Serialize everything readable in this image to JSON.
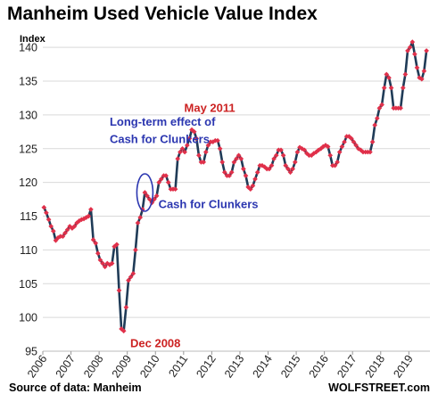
{
  "title": "Manheim Used Vehicle Value Index",
  "source": "Source of data: Manheim",
  "brand": "WOLFSTREET.com",
  "colors": {
    "line": "#1f3b57",
    "marker": "#e0304a",
    "red_text": "#cc2222",
    "blue_text": "#2b36b0",
    "grid": "#d9d9d9"
  },
  "chart_data": {
    "type": "line",
    "ylabel": "Index",
    "ylim": [
      95,
      142
    ],
    "yticks": [
      95,
      100,
      105,
      110,
      115,
      120,
      125,
      130,
      135,
      140
    ],
    "xlim": [
      2006,
      2019.75
    ],
    "xticks": [
      "2006",
      "2007",
      "2008",
      "2009",
      "2010",
      "2011",
      "2012",
      "2013",
      "2014",
      "2015",
      "2016",
      "2017",
      "2018",
      "2019"
    ],
    "grid": "horizontal",
    "legend": "none",
    "series": [
      {
        "x": [
          "2006-01",
          "2006-02",
          "2006-03",
          "2006-04",
          "2006-05",
          "2006-06",
          "2006-07",
          "2006-08",
          "2006-09",
          "2006-10",
          "2006-11",
          "2006-12",
          "2007-01",
          "2007-02",
          "2007-03",
          "2007-04",
          "2007-05",
          "2007-06",
          "2007-07",
          "2007-08",
          "2007-09",
          "2007-10",
          "2007-11",
          "2007-12",
          "2008-01",
          "2008-02",
          "2008-03",
          "2008-04",
          "2008-05",
          "2008-06",
          "2008-07",
          "2008-08",
          "2008-09",
          "2008-10",
          "2008-11",
          "2008-12",
          "2009-01",
          "2009-02",
          "2009-03",
          "2009-04",
          "2009-05",
          "2009-06",
          "2009-07",
          "2009-08",
          "2009-09",
          "2009-10",
          "2009-11",
          "2009-12",
          "2010-01",
          "2010-02",
          "2010-03",
          "2010-04",
          "2010-05",
          "2010-06",
          "2010-07",
          "2010-08",
          "2010-09",
          "2010-10",
          "2010-11",
          "2010-12",
          "2011-01",
          "2011-02",
          "2011-03",
          "2011-04",
          "2011-05",
          "2011-06",
          "2011-07",
          "2011-08",
          "2011-09",
          "2011-10",
          "2011-11",
          "2011-12",
          "2012-01",
          "2012-02",
          "2012-03",
          "2012-04",
          "2012-05",
          "2012-06",
          "2012-07",
          "2012-08",
          "2012-09",
          "2012-10",
          "2012-11",
          "2012-12",
          "2013-01",
          "2013-02",
          "2013-03",
          "2013-04",
          "2013-05",
          "2013-06",
          "2013-07",
          "2013-08",
          "2013-09",
          "2013-10",
          "2013-11",
          "2013-12",
          "2014-01",
          "2014-02",
          "2014-03",
          "2014-04",
          "2014-05",
          "2014-06",
          "2014-07",
          "2014-08",
          "2014-09",
          "2014-10",
          "2014-11",
          "2014-12",
          "2015-01",
          "2015-02",
          "2015-03",
          "2015-04",
          "2015-05",
          "2015-06",
          "2015-07",
          "2015-08",
          "2015-09",
          "2015-10",
          "2015-11",
          "2015-12",
          "2016-01",
          "2016-02",
          "2016-03",
          "2016-04",
          "2016-05",
          "2016-06",
          "2016-07",
          "2016-08",
          "2016-09",
          "2016-10",
          "2016-11",
          "2016-12",
          "2017-01",
          "2017-02",
          "2017-03",
          "2017-04",
          "2017-05",
          "2017-06",
          "2017-07",
          "2017-08",
          "2017-09",
          "2017-10",
          "2017-11",
          "2017-12",
          "2018-01",
          "2018-02",
          "2018-03",
          "2018-04",
          "2018-05",
          "2018-06",
          "2018-07",
          "2018-08",
          "2018-09",
          "2018-10",
          "2018-11",
          "2018-12",
          "2019-01",
          "2019-02",
          "2019-03",
          "2019-04",
          "2019-05",
          "2019-06",
          "2019-07",
          "2019-08"
        ],
        "values": [
          116.3,
          115.5,
          114.5,
          113.5,
          112.8,
          111.4,
          111.8,
          112.0,
          112.0,
          112.5,
          113.0,
          113.5,
          113.2,
          113.5,
          114.0,
          114.3,
          114.5,
          114.6,
          114.8,
          115.0,
          116.0,
          111.5,
          111.0,
          109.5,
          108.5,
          108.0,
          107.5,
          108.0,
          107.8,
          108.0,
          110.5,
          110.8,
          104.0,
          98.3,
          98.0,
          101.5,
          105.5,
          106.0,
          106.5,
          110.0,
          114.0,
          114.8,
          116.0,
          118.5,
          118.0,
          117.5,
          117.0,
          117.5,
          118.0,
          120.0,
          120.5,
          121.0,
          121.0,
          120.0,
          119.0,
          119.0,
          119.0,
          123.5,
          124.5,
          125.0,
          124.5,
          125.5,
          126.5,
          127.8,
          127.5,
          126.5,
          124.0,
          123.0,
          123.0,
          124.5,
          125.5,
          126.0,
          126.0,
          126.2,
          126.2,
          125.0,
          123.0,
          121.5,
          121.0,
          121.0,
          121.5,
          123.0,
          123.5,
          124.0,
          123.5,
          122.0,
          121.0,
          119.3,
          119.0,
          119.5,
          120.5,
          121.5,
          122.5,
          122.5,
          122.3,
          122.0,
          122.0,
          122.5,
          123.5,
          124.0,
          124.8,
          124.8,
          124.0,
          122.5,
          122.0,
          121.5,
          122.0,
          123.0,
          124.5,
          125.2,
          125.0,
          124.8,
          124.3,
          124.0,
          124.0,
          124.3,
          124.5,
          124.8,
          125.0,
          125.3,
          125.5,
          125.3,
          124.0,
          122.5,
          122.5,
          123.0,
          124.5,
          125.3,
          126.0,
          126.8,
          126.8,
          126.5,
          126.0,
          125.5,
          125.0,
          124.8,
          124.5,
          124.5,
          124.5,
          124.5,
          126.0,
          128.5,
          129.5,
          131.0,
          131.5,
          134.0,
          136.0,
          135.5,
          134.0,
          131.0,
          131.0,
          131.0,
          131.0,
          134.0,
          136.0,
          139.5,
          140.0,
          140.8,
          139.0,
          137.0,
          135.5,
          135.3,
          136.5,
          139.5
        ]
      }
    ],
    "annotations": [
      {
        "text": "May 2011",
        "x": "2011-05",
        "y": 127.8,
        "color": "red"
      },
      {
        "text": "Long-term effect of",
        "x": "2008-05",
        "y": 128.4,
        "color": "blue"
      },
      {
        "text": "Cash for Clunkers",
        "x": "2008-05",
        "y": 125.8,
        "color": "blue"
      },
      {
        "text": "Cash for Clunkers",
        "x": "2010-01",
        "y": 116.7,
        "color": "blue"
      },
      {
        "text": "Dec 2008",
        "x": "2009-01",
        "y": 98.0,
        "color": "red"
      }
    ],
    "highlight": {
      "shape": "ellipse",
      "x": "2009-08",
      "y": 118.5,
      "color": "blue"
    }
  }
}
